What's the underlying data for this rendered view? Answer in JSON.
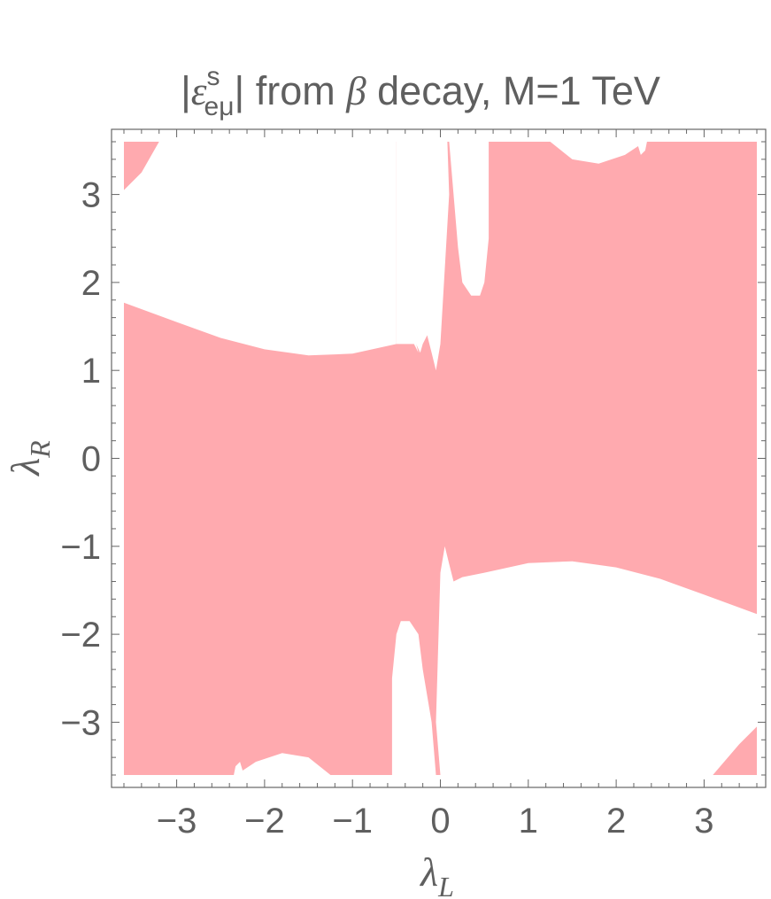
{
  "chart_data": {
    "type": "region",
    "title_parts": {
      "abs_open": "|",
      "symbol": "ε",
      "superscript": "s",
      "subscript": "eμ",
      "abs_close": "|",
      "text1": " from ",
      "beta": "β",
      "text2": " decay, M=1 TeV"
    },
    "xlabel": {
      "symbol": "λ",
      "sub": "L"
    },
    "ylabel": {
      "symbol": "λ",
      "sub": "R"
    },
    "xlim": [
      -3.6,
      3.6
    ],
    "ylim": [
      -3.6,
      3.6
    ],
    "xticks": [
      {
        "value": -3,
        "label": "−3"
      },
      {
        "value": -2,
        "label": "−2"
      },
      {
        "value": -1,
        "label": "−1"
      },
      {
        "value": 0,
        "label": "0"
      },
      {
        "value": 1,
        "label": "1"
      },
      {
        "value": 2,
        "label": "2"
      },
      {
        "value": 3,
        "label": "3"
      }
    ],
    "yticks": [
      {
        "value": 3,
        "label": "3"
      },
      {
        "value": 2,
        "label": "2"
      },
      {
        "value": 1,
        "label": "1"
      },
      {
        "value": 0,
        "label": "0"
      },
      {
        "value": -1,
        "label": "−1"
      },
      {
        "value": -2,
        "label": "−2"
      },
      {
        "value": -3,
        "label": "−3"
      }
    ],
    "minor_step": 0.2,
    "grid": false,
    "fill_color": "#ffaaaf",
    "excluded_color": "#ffffff",
    "frame_color": "#666666",
    "excluded_regions": [
      {
        "name": "excluded-upper-left",
        "points": [
          [
            -3.6,
            3.05
          ],
          [
            -3.4,
            3.25
          ],
          [
            -3.2,
            3.6
          ],
          [
            -0.5,
            3.6
          ],
          [
            -0.5,
            1.3
          ],
          [
            -0.3,
            1.4
          ],
          [
            -0.25,
            1.2
          ],
          [
            -0.3,
            1.3
          ],
          [
            -0.5,
            1.3
          ],
          [
            -1,
            1.19
          ],
          [
            -1.5,
            1.17
          ],
          [
            -2,
            1.24
          ],
          [
            -2.5,
            1.37
          ],
          [
            -3,
            1.55
          ],
          [
            -3.6,
            1.77
          ]
        ]
      },
      {
        "name": "excluded-upper-strip",
        "points": [
          [
            -0.5,
            3.6
          ],
          [
            0.08,
            3.6
          ],
          [
            0.1,
            3.0
          ],
          [
            0.0,
            1.3
          ],
          [
            -0.05,
            1.0
          ],
          [
            -0.1,
            1.2
          ],
          [
            -0.15,
            1.4
          ],
          [
            -0.2,
            1.3
          ],
          [
            -0.23,
            1.2
          ],
          [
            -0.3,
            1.35
          ],
          [
            -0.5,
            1.3
          ]
        ]
      },
      {
        "name": "excluded-upper-notch",
        "points": [
          [
            0.1,
            3.6
          ],
          [
            0.55,
            3.6
          ],
          [
            0.55,
            2.5
          ],
          [
            0.5,
            2.0
          ],
          [
            0.45,
            1.85
          ],
          [
            0.35,
            1.85
          ],
          [
            0.25,
            2.0
          ],
          [
            0.2,
            2.4
          ],
          [
            0.15,
            3.0
          ]
        ]
      },
      {
        "name": "excluded-upper-right-bump",
        "points": [
          [
            1.25,
            3.6
          ],
          [
            1.5,
            3.4
          ],
          [
            1.8,
            3.35
          ],
          [
            2.1,
            3.45
          ],
          [
            2.25,
            3.55
          ],
          [
            2.28,
            3.45
          ],
          [
            2.33,
            3.5
          ],
          [
            2.35,
            3.6
          ]
        ]
      },
      {
        "name": "excluded-lower-right",
        "points": [
          [
            3.6,
            -3.05
          ],
          [
            3.4,
            -3.25
          ],
          [
            3.1,
            -3.6
          ],
          [
            0.0,
            -3.6
          ],
          [
            -0.05,
            -3.0
          ],
          [
            0.0,
            -1.3
          ],
          [
            0.05,
            -1.0
          ],
          [
            0.1,
            -1.2
          ],
          [
            0.15,
            -1.4
          ],
          [
            0.25,
            -1.35
          ],
          [
            0.5,
            -1.3
          ],
          [
            1.0,
            -1.19
          ],
          [
            1.5,
            -1.17
          ],
          [
            2.0,
            -1.24
          ],
          [
            2.5,
            -1.37
          ],
          [
            3.0,
            -1.55
          ],
          [
            3.6,
            -1.77
          ]
        ]
      },
      {
        "name": "excluded-lower-notch",
        "points": [
          [
            -0.55,
            -3.6
          ],
          [
            -0.05,
            -3.6
          ],
          [
            -0.1,
            -3.0
          ],
          [
            -0.2,
            -2.4
          ],
          [
            -0.25,
            -2.0
          ],
          [
            -0.35,
            -1.85
          ],
          [
            -0.45,
            -1.85
          ],
          [
            -0.5,
            -2.0
          ],
          [
            -0.55,
            -2.5
          ]
        ]
      },
      {
        "name": "excluded-lower-left-bump",
        "points": [
          [
            -2.35,
            -3.6
          ],
          [
            -2.33,
            -3.5
          ],
          [
            -2.28,
            -3.45
          ],
          [
            -2.25,
            -3.55
          ],
          [
            -2.1,
            -3.45
          ],
          [
            -1.8,
            -3.35
          ],
          [
            -1.5,
            -3.4
          ],
          [
            -1.25,
            -3.6
          ]
        ]
      }
    ]
  }
}
